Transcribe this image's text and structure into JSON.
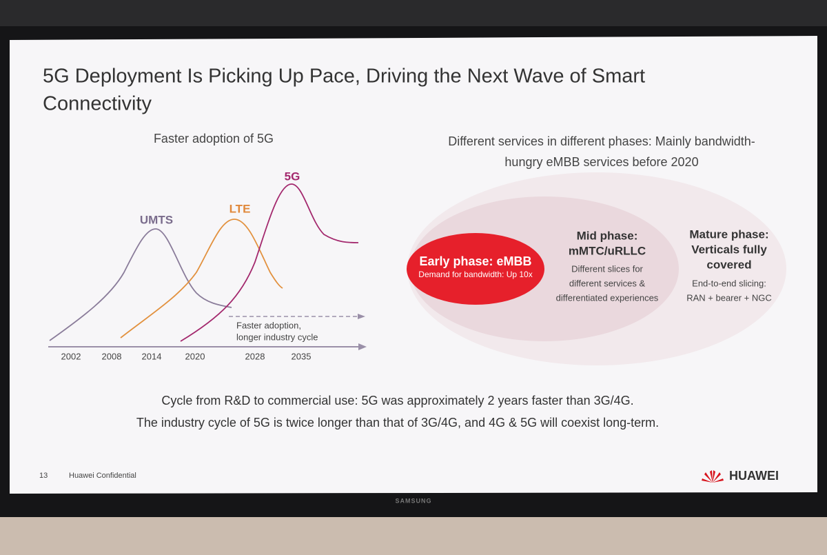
{
  "slide": {
    "title": [
      "5G Deployment Is Picking Up Pace, Driving the Next Wave of Smart",
      "Connectivity"
    ],
    "left": {
      "heading": "Faster adoption of 5G",
      "curves": [
        "UMTS",
        "LTE",
        "5G"
      ],
      "arrow_label": [
        "Faster adoption,",
        "longer industry cycle"
      ],
      "years": [
        "2002",
        "2008",
        "2014",
        "2020",
        "2028",
        "2035"
      ]
    },
    "right": {
      "heading": [
        "Different services in different phases: Mainly bandwidth-",
        "hungry eMBB services before 2020"
      ],
      "phases": [
        {
          "title": [
            "Early phase: eMBB"
          ],
          "detail": [
            "Demand for bandwidth: Up 10x"
          ]
        },
        {
          "title": [
            "Mid phase:",
            "mMTC/uRLLC"
          ],
          "detail": [
            "Different slices for",
            "different services &",
            "differentiated experiences"
          ]
        },
        {
          "title": [
            "Mature phase:",
            "Verticals fully",
            "covered"
          ],
          "detail": [
            "End-to-end slicing:",
            "RAN + bearer + NGC"
          ]
        }
      ]
    },
    "notes": [
      "Cycle from R&D to commercial use: 5G was approximately 2 years faster than 3G/4G.",
      "The industry cycle of 5G is twice longer than that of 3G/4G, and 4G & 5G will coexist long-term."
    ],
    "footer": {
      "page": "13",
      "label": "Huawei Confidential",
      "brand": "HUAWEI"
    }
  },
  "tv_brand": "SAMSUNG"
}
